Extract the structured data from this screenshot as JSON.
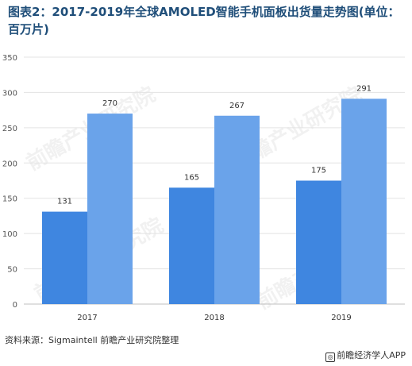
{
  "title": "图表2：2017-2019年全球AMOLED智能手机面板出货量走势图(单位：百万片)",
  "source": "资料来源：Sigmaintell 前瞻产业研究院整理",
  "brand": "前瞻经济学人APP",
  "watermark": "前瞻产业研究院",
  "colors": {
    "series1": "#3f86e0",
    "series2": "#6aa3ea",
    "grid": "#e3e3e3"
  },
  "chart_data": {
    "type": "bar",
    "title": "图表2：2017-2019年全球AMOLED智能手机面板出货量走势图(单位：百万片)",
    "xlabel": "",
    "ylabel": "",
    "categories": [
      "2017",
      "2018",
      "2019"
    ],
    "series": [
      {
        "values": [
          131,
          165,
          175
        ]
      },
      {
        "values": [
          270,
          267,
          291
        ]
      }
    ],
    "ylim": [
      0,
      350
    ],
    "yticks": [
      0,
      50,
      100,
      150,
      200,
      250,
      300,
      350
    ],
    "grid": true,
    "legend": "none"
  }
}
